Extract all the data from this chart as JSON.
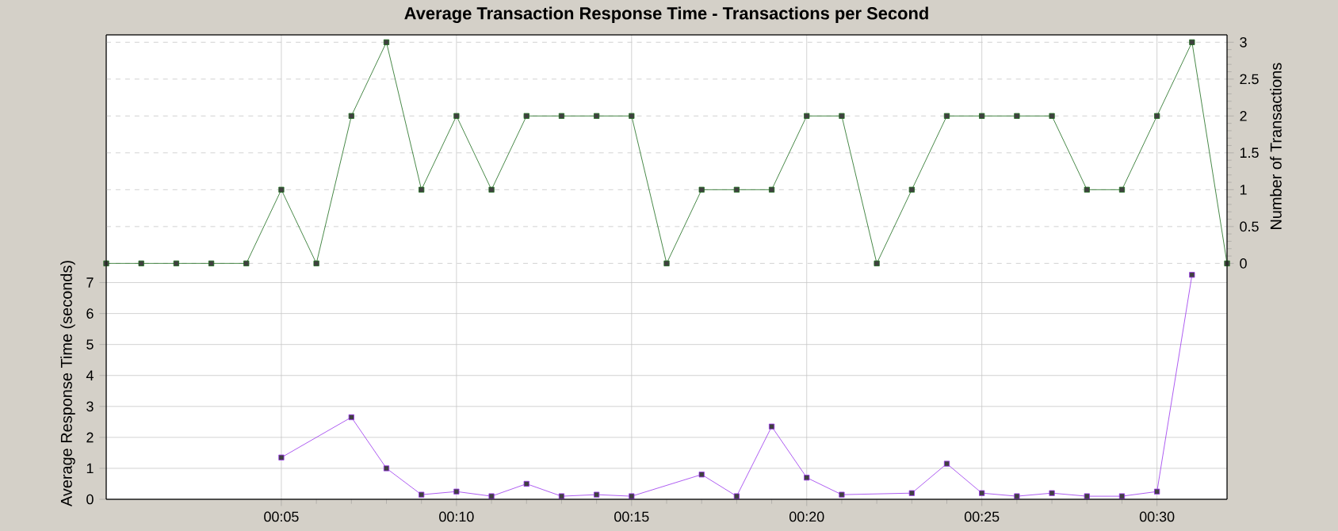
{
  "chart_data": {
    "type": "line",
    "title": "Average Transaction Response Time - Transactions per Second",
    "ylabel": "Average Response Time (seconds)",
    "y2label": "Number of Transactions",
    "x": [
      0,
      1,
      2,
      3,
      4,
      5,
      6,
      7,
      8,
      9,
      10,
      11,
      12,
      13,
      14,
      15,
      16,
      17,
      18,
      19,
      20,
      21,
      22,
      23,
      24,
      25,
      26,
      27,
      28,
      29,
      30,
      31,
      32
    ],
    "xlim": [
      0,
      32
    ],
    "xticks": [
      {
        "value": 5,
        "label": "00:05"
      },
      {
        "value": 10,
        "label": "00:10"
      },
      {
        "value": 15,
        "label": "00:15"
      },
      {
        "value": 20,
        "label": "00:20"
      },
      {
        "value": 25,
        "label": "00:25"
      },
      {
        "value": 30,
        "label": "00:30"
      }
    ],
    "ylim": [
      0,
      15
    ],
    "yticks": [
      0,
      1,
      2,
      3,
      4,
      5,
      6,
      7
    ],
    "y2lim": [
      -3.2,
      3.1
    ],
    "y2ticks": [
      0,
      0.5,
      1,
      1.5,
      2,
      2.5,
      3
    ],
    "grid": true,
    "marker": "square",
    "line_style": "solid",
    "series": [
      {
        "color": "#1a6b1a",
        "axis": "y2",
        "values": [
          0,
          0,
          0,
          0,
          0,
          1,
          0,
          2,
          3,
          1,
          2,
          1,
          2,
          2,
          2,
          2,
          0,
          1,
          1,
          1,
          2,
          2,
          0,
          1,
          2,
          2,
          2,
          2,
          1,
          1,
          2,
          3,
          0
        ]
      },
      {
        "color": "#9933ee",
        "x": [
          5,
          7,
          8,
          9,
          10,
          11,
          12,
          13,
          14,
          15,
          17,
          18,
          19,
          20,
          21,
          23,
          24,
          25,
          26,
          27,
          28,
          29,
          30,
          31
        ],
        "values": [
          1.35,
          2.65,
          1.0,
          0.15,
          0.25,
          0.1,
          0.5,
          0.1,
          0.15,
          0.1,
          0.8,
          0.1,
          2.35,
          0.7,
          0.15,
          0.2,
          1.15,
          0.2,
          0.1,
          0.2,
          0.1,
          0.1,
          0.25,
          7.25
        ]
      }
    ]
  }
}
